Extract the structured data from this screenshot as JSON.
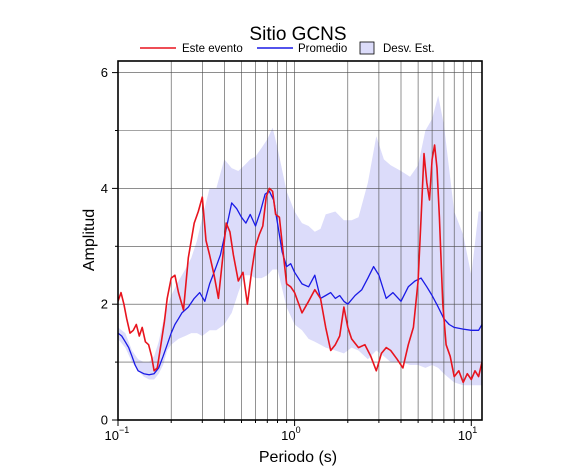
{
  "chart_data": {
    "type": "line",
    "title": "Sitio GCNS",
    "xlabel": "Periodo (s)",
    "ylabel": "Amplitud",
    "x_scale": "log",
    "xlim": [
      0.1,
      11.5
    ],
    "ylim": [
      0,
      6.2
    ],
    "grid": true,
    "legend_position": "top",
    "x_ticks": [
      {
        "base": "10",
        "exp": "−1",
        "value": 0.1
      },
      {
        "base": "10",
        "exp": "0",
        "value": 1
      },
      {
        "base": "10",
        "exp": "1",
        "value": 10
      }
    ],
    "y_ticks": [
      {
        "label": "0",
        "value": 0
      },
      {
        "label": "2",
        "value": 2
      },
      {
        "label": "4",
        "value": 4
      },
      {
        "label": "6",
        "value": 6
      }
    ],
    "legend": [
      {
        "label": "Este evento",
        "kind": "line",
        "color": "#e8141e"
      },
      {
        "label": "Promedio",
        "kind": "line",
        "color": "#1a1ae6"
      },
      {
        "label": "Desv. Est.",
        "kind": "band",
        "color": "#dcdcfa"
      }
    ],
    "series": [
      {
        "name": "Este evento",
        "color": "#e8141e",
        "x": [
          0.1,
          0.104,
          0.108,
          0.112,
          0.117,
          0.122,
          0.127,
          0.132,
          0.137,
          0.143,
          0.149,
          0.155,
          0.16,
          0.167,
          0.175,
          0.183,
          0.19,
          0.2,
          0.21,
          0.22,
          0.235,
          0.25,
          0.27,
          0.285,
          0.3,
          0.315,
          0.33,
          0.35,
          0.37,
          0.39,
          0.41,
          0.43,
          0.45,
          0.48,
          0.51,
          0.54,
          0.57,
          0.6,
          0.63,
          0.66,
          0.69,
          0.72,
          0.75,
          0.78,
          0.82,
          0.86,
          0.9,
          0.95,
          1.0,
          1.1,
          1.2,
          1.3,
          1.4,
          1.5,
          1.6,
          1.7,
          1.8,
          1.9,
          2.0,
          2.1,
          2.3,
          2.5,
          2.7,
          2.9,
          3.1,
          3.3,
          3.5,
          3.8,
          4.1,
          4.4,
          4.7,
          5.0,
          5.2,
          5.4,
          5.6,
          5.8,
          6.0,
          6.2,
          6.4,
          6.6,
          6.9,
          7.2,
          7.6,
          8.0,
          8.5,
          9.0,
          9.5,
          10.0,
          10.5,
          11.0,
          11.5
        ],
        "y": [
          2.05,
          2.2,
          2.0,
          1.75,
          1.5,
          1.55,
          1.65,
          1.45,
          1.6,
          1.35,
          1.3,
          1.1,
          0.85,
          0.9,
          1.3,
          1.7,
          2.1,
          2.45,
          2.5,
          2.2,
          1.9,
          2.8,
          3.4,
          3.6,
          3.85,
          3.1,
          2.85,
          2.5,
          2.1,
          2.75,
          3.4,
          3.25,
          2.85,
          2.4,
          2.55,
          2.0,
          2.55,
          3.0,
          3.2,
          3.35,
          3.85,
          4.0,
          3.95,
          3.55,
          3.5,
          2.9,
          2.35,
          2.3,
          2.2,
          1.85,
          2.05,
          2.25,
          2.1,
          1.6,
          1.2,
          1.3,
          1.45,
          1.95,
          1.6,
          1.4,
          1.25,
          1.3,
          1.1,
          0.85,
          1.15,
          1.25,
          1.2,
          1.05,
          0.9,
          1.3,
          1.6,
          2.4,
          3.5,
          4.6,
          4.1,
          3.8,
          4.5,
          4.75,
          4.35,
          3.5,
          2.0,
          1.3,
          1.1,
          0.75,
          0.85,
          0.65,
          0.8,
          0.7,
          0.85,
          0.75,
          1.0
        ]
      },
      {
        "name": "Promedio",
        "color": "#1a1ae6",
        "x": [
          0.1,
          0.105,
          0.11,
          0.115,
          0.12,
          0.125,
          0.13,
          0.14,
          0.15,
          0.16,
          0.17,
          0.18,
          0.19,
          0.2,
          0.21,
          0.22,
          0.23,
          0.25,
          0.27,
          0.29,
          0.31,
          0.33,
          0.35,
          0.38,
          0.41,
          0.44,
          0.47,
          0.5,
          0.53,
          0.56,
          0.6,
          0.64,
          0.68,
          0.72,
          0.76,
          0.8,
          0.85,
          0.9,
          0.95,
          1.0,
          1.1,
          1.2,
          1.3,
          1.4,
          1.5,
          1.6,
          1.7,
          1.8,
          1.9,
          2.0,
          2.2,
          2.4,
          2.6,
          2.8,
          3.0,
          3.3,
          3.6,
          4.0,
          4.4,
          4.8,
          5.2,
          5.6,
          6.0,
          6.5,
          7.0,
          7.5,
          8.0,
          9.0,
          10.0,
          11.0,
          11.5
        ],
        "y": [
          1.5,
          1.45,
          1.35,
          1.25,
          1.1,
          0.95,
          0.85,
          0.8,
          0.78,
          0.8,
          0.9,
          1.1,
          1.3,
          1.5,
          1.65,
          1.75,
          1.85,
          1.95,
          2.1,
          2.2,
          2.05,
          2.35,
          2.55,
          2.85,
          3.3,
          3.75,
          3.65,
          3.5,
          3.4,
          3.55,
          3.35,
          3.6,
          3.9,
          3.95,
          3.8,
          3.4,
          2.9,
          2.65,
          2.7,
          2.55,
          2.35,
          2.3,
          2.5,
          2.1,
          2.15,
          2.2,
          2.1,
          2.15,
          2.05,
          2.0,
          2.15,
          2.25,
          2.45,
          2.65,
          2.5,
          2.1,
          2.2,
          2.05,
          2.3,
          2.4,
          2.45,
          2.3,
          2.15,
          1.95,
          1.75,
          1.65,
          1.6,
          1.57,
          1.55,
          1.55,
          1.65
        ]
      }
    ],
    "std_band": {
      "name": "Desv. Est.",
      "color": "#dcdcfa",
      "x": [
        0.1,
        0.11,
        0.12,
        0.13,
        0.14,
        0.15,
        0.16,
        0.17,
        0.18,
        0.19,
        0.2,
        0.22,
        0.24,
        0.26,
        0.28,
        0.3,
        0.33,
        0.36,
        0.4,
        0.44,
        0.48,
        0.52,
        0.56,
        0.6,
        0.65,
        0.7,
        0.75,
        0.8,
        0.9,
        1.0,
        1.1,
        1.2,
        1.3,
        1.4,
        1.5,
        1.7,
        1.9,
        2.1,
        2.3,
        2.6,
        2.9,
        3.2,
        3.5,
        4.0,
        4.5,
        5.0,
        5.5,
        6.0,
        6.5,
        7.0,
        8.0,
        9.0,
        10.0,
        11.0,
        11.5
      ],
      "upper": [
        1.6,
        1.5,
        1.2,
        1.05,
        1.0,
        1.0,
        1.1,
        1.35,
        1.7,
        1.95,
        2.15,
        2.4,
        2.6,
        2.8,
        3.1,
        3.5,
        4.0,
        4.0,
        4.5,
        4.35,
        4.3,
        4.4,
        4.5,
        4.55,
        4.7,
        4.85,
        5.05,
        4.7,
        3.95,
        3.6,
        3.4,
        3.35,
        3.25,
        3.3,
        3.55,
        3.6,
        3.45,
        3.45,
        3.5,
        4.1,
        4.9,
        4.5,
        4.4,
        4.3,
        4.2,
        4.4,
        5.0,
        5.2,
        5.6,
        5.1,
        3.6,
        3.2,
        2.5,
        3.6,
        3.6
      ],
      "lower": [
        1.4,
        1.25,
        1.0,
        0.85,
        0.75,
        0.7,
        0.7,
        0.8,
        0.95,
        1.2,
        1.3,
        1.4,
        1.45,
        1.5,
        1.5,
        1.45,
        1.55,
        1.55,
        1.65,
        1.85,
        2.2,
        2.5,
        2.5,
        2.45,
        2.45,
        2.5,
        2.6,
        2.6,
        1.95,
        1.65,
        1.55,
        1.4,
        1.35,
        1.3,
        1.25,
        1.2,
        1.15,
        1.25,
        1.2,
        1.05,
        1.2,
        1.1,
        1.0,
        1.0,
        0.95,
        0.95,
        0.9,
        0.95,
        0.9,
        0.8,
        0.65,
        0.6,
        0.6,
        0.6,
        0.6
      ]
    }
  }
}
